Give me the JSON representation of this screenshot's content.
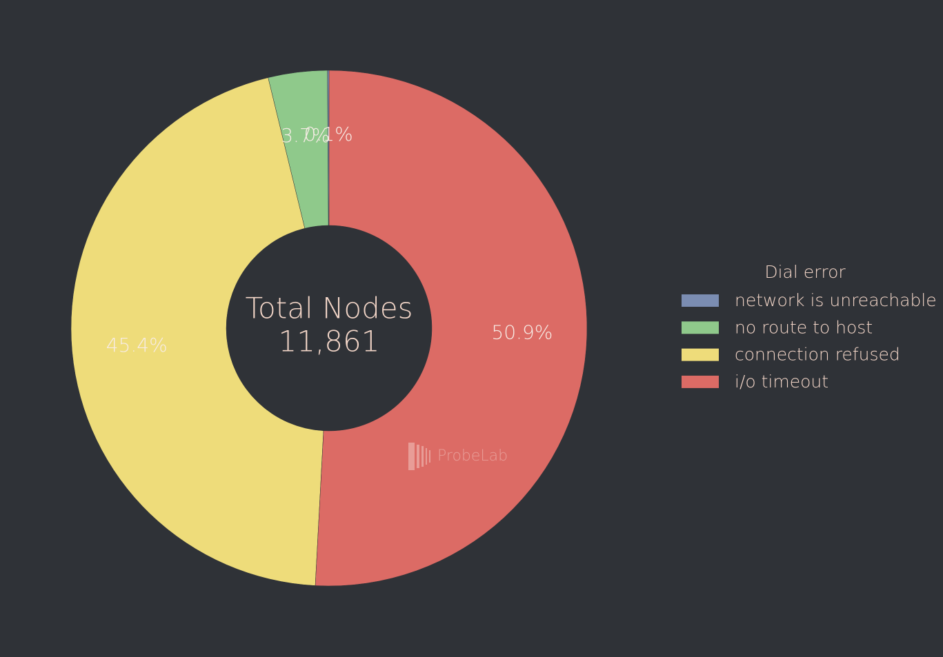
{
  "chart_data": {
    "type": "pie",
    "direction": "counterclockwise",
    "categories": [
      "network is unreachable",
      "no route to host",
      "connection refused",
      "i/o timeout"
    ],
    "values": [
      0.1,
      3.7,
      45.4,
      50.9
    ],
    "value_labels": [
      "0.1%",
      "3.7%",
      "45.4%",
      "50.9%"
    ],
    "colors": [
      "#7b8db2",
      "#8fc98b",
      "#eedc7a",
      "#dc6b65"
    ],
    "center_title": "Total Nodes",
    "total": {
      "value": 11861,
      "label": "11,861"
    },
    "legend_title": "Dial error",
    "legend": "right",
    "watermark": "ProbeLab"
  }
}
